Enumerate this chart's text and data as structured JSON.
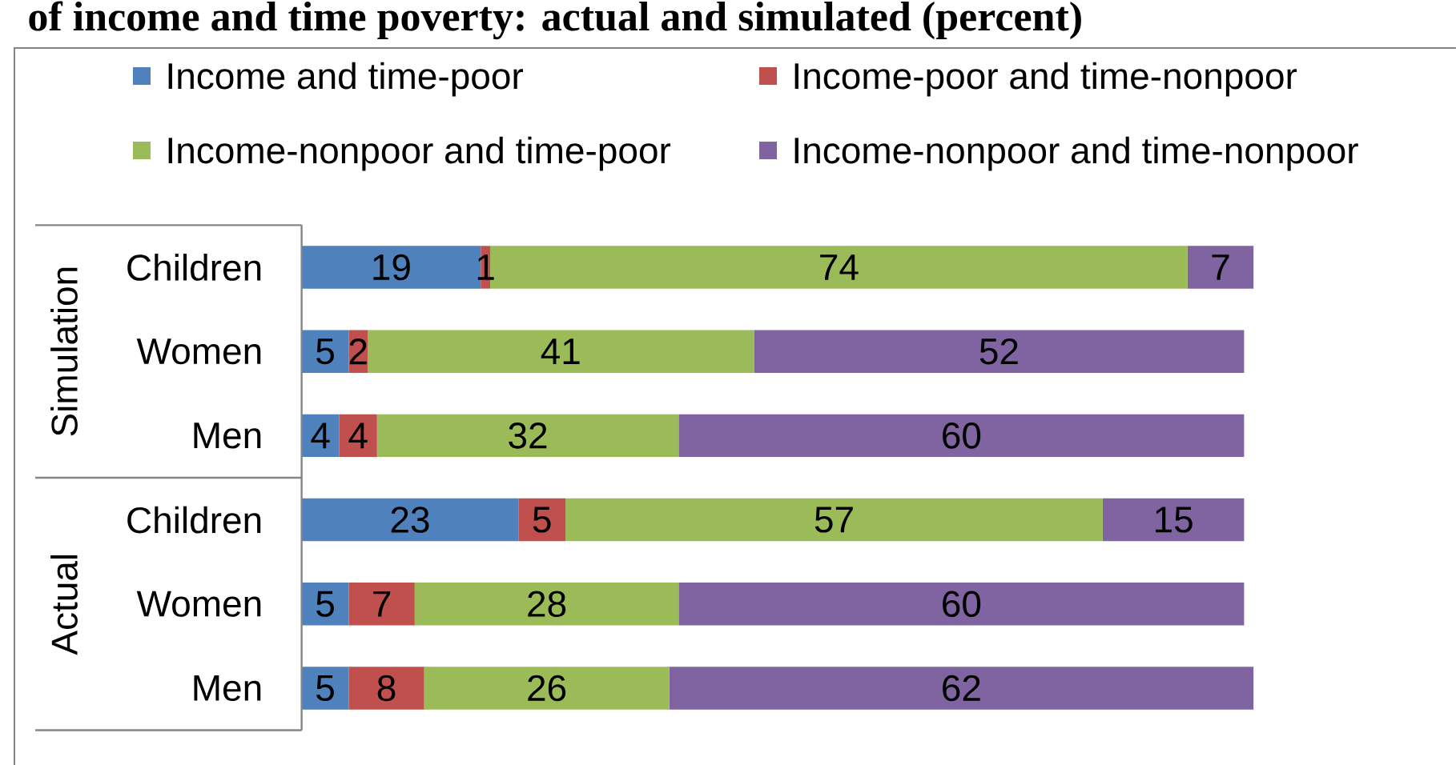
{
  "chart_data": {
    "type": "bar",
    "orientation": "horizontal",
    "stacked": true,
    "title": "of income and time poverty: actual and simulated (percent)",
    "categories": [
      "Children",
      "Women",
      "Men",
      "Children",
      "Women",
      "Men"
    ],
    "series": [
      {
        "name": "Income and time-poor",
        "color": "#4f81bd",
        "values": [
          19,
          5,
          4,
          23,
          5,
          5
        ]
      },
      {
        "name": "Income-poor and time-nonpoor",
        "color": "#c0504d",
        "values": [
          1,
          2,
          4,
          5,
          7,
          8
        ]
      },
      {
        "name": "Income-nonpoor and time-poor",
        "color": "#9bbb59",
        "values": [
          74,
          41,
          32,
          57,
          28,
          26
        ]
      },
      {
        "name": "Income-nonpoor and time-nonpoor",
        "color": "#8064a2",
        "values": [
          7,
          52,
          60,
          15,
          60,
          62
        ]
      }
    ],
    "annotations": [
      "Simulation",
      "Actual"
    ],
    "data_labels": true,
    "legend": "top",
    "tick_labels": "y"
  }
}
